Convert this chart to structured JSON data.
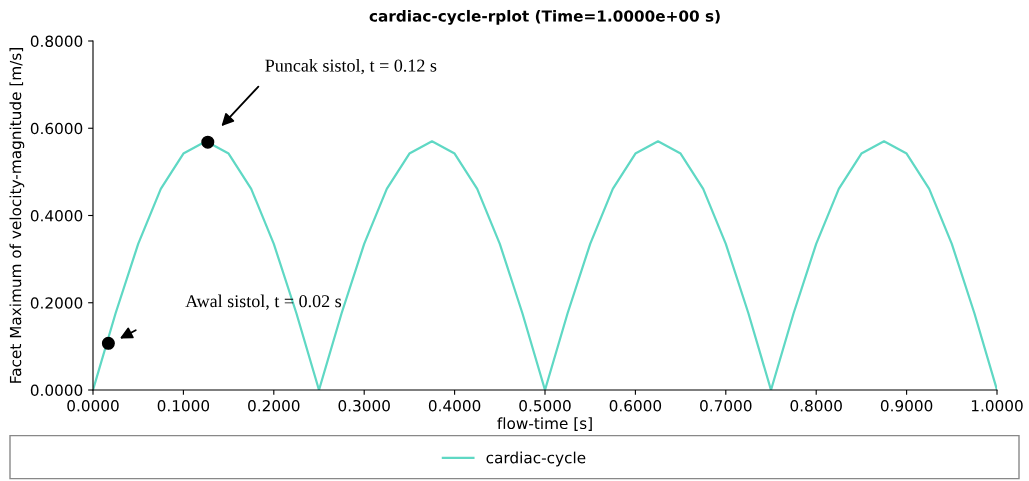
{
  "chart_data": {
    "type": "line",
    "title": "cardiac-cycle-rplot (Time=1.0000e+00 s)",
    "xlabel": "flow-time [s]",
    "ylabel": "Facet Maximum of velocity-magnitude [m/s]",
    "series": [
      {
        "name": "cardiac-cycle",
        "color": "#5fd8c4",
        "x": [
          0,
          0.025,
          0.05,
          0.075,
          0.1,
          0.125,
          0.15,
          0.175,
          0.2,
          0.225,
          0.25,
          0.275,
          0.3,
          0.325,
          0.35,
          0.375,
          0.4,
          0.425,
          0.45,
          0.475,
          0.5,
          0.525,
          0.55,
          0.575,
          0.6,
          0.625,
          0.65,
          0.675,
          0.7,
          0.725,
          0.75,
          0.775,
          0.8,
          0.825,
          0.85,
          0.875,
          0.9,
          0.925,
          0.95,
          0.975,
          1.0
        ],
        "values": [
          0,
          0.176,
          0.335,
          0.461,
          0.542,
          0.57,
          0.542,
          0.461,
          0.335,
          0.176,
          0,
          0.176,
          0.335,
          0.461,
          0.542,
          0.57,
          0.542,
          0.461,
          0.335,
          0.176,
          0,
          0.176,
          0.335,
          0.461,
          0.542,
          0.57,
          0.542,
          0.461,
          0.335,
          0.176,
          0,
          0.176,
          0.335,
          0.461,
          0.542,
          0.57,
          0.542,
          0.461,
          0.335,
          0.176,
          0
        ]
      },
      {
        "type": "scatter",
        "color": "#000000",
        "x": [
          0.017,
          0.127
        ],
        "values": [
          0.107,
          0.568
        ]
      }
    ],
    "annotations": [
      "Awal sistol, t = 0.02 s",
      "Puncak sistol, t = 0.12 s"
    ],
    "xlim": [
      0,
      1.0
    ],
    "ylim": [
      0,
      0.8
    ],
    "xticks": [
      {
        "value": 0,
        "label": "0.0000"
      },
      {
        "value": 0.1,
        "label": "0.1000"
      },
      {
        "value": 0.2,
        "label": "0.2000"
      },
      {
        "value": 0.3,
        "label": "0.3000"
      },
      {
        "value": 0.4,
        "label": "0.4000"
      },
      {
        "value": 0.5,
        "label": "0.5000"
      },
      {
        "value": 0.6,
        "label": "0.6000"
      },
      {
        "value": 0.7,
        "label": "0.7000"
      },
      {
        "value": 0.8,
        "label": "0.8000"
      },
      {
        "value": 0.9,
        "label": "0.9000"
      },
      {
        "value": 1.0,
        "label": "1.0000"
      }
    ],
    "yticks": [
      {
        "value": 0,
        "label": "0.0000"
      },
      {
        "value": 0.2,
        "label": "0.2000"
      },
      {
        "value": 0.4,
        "label": "0.4000"
      },
      {
        "value": 0.6,
        "label": "0.6000"
      },
      {
        "value": 0.8,
        "label": "0.8000"
      }
    ],
    "grid": false,
    "legend": "bottom"
  }
}
